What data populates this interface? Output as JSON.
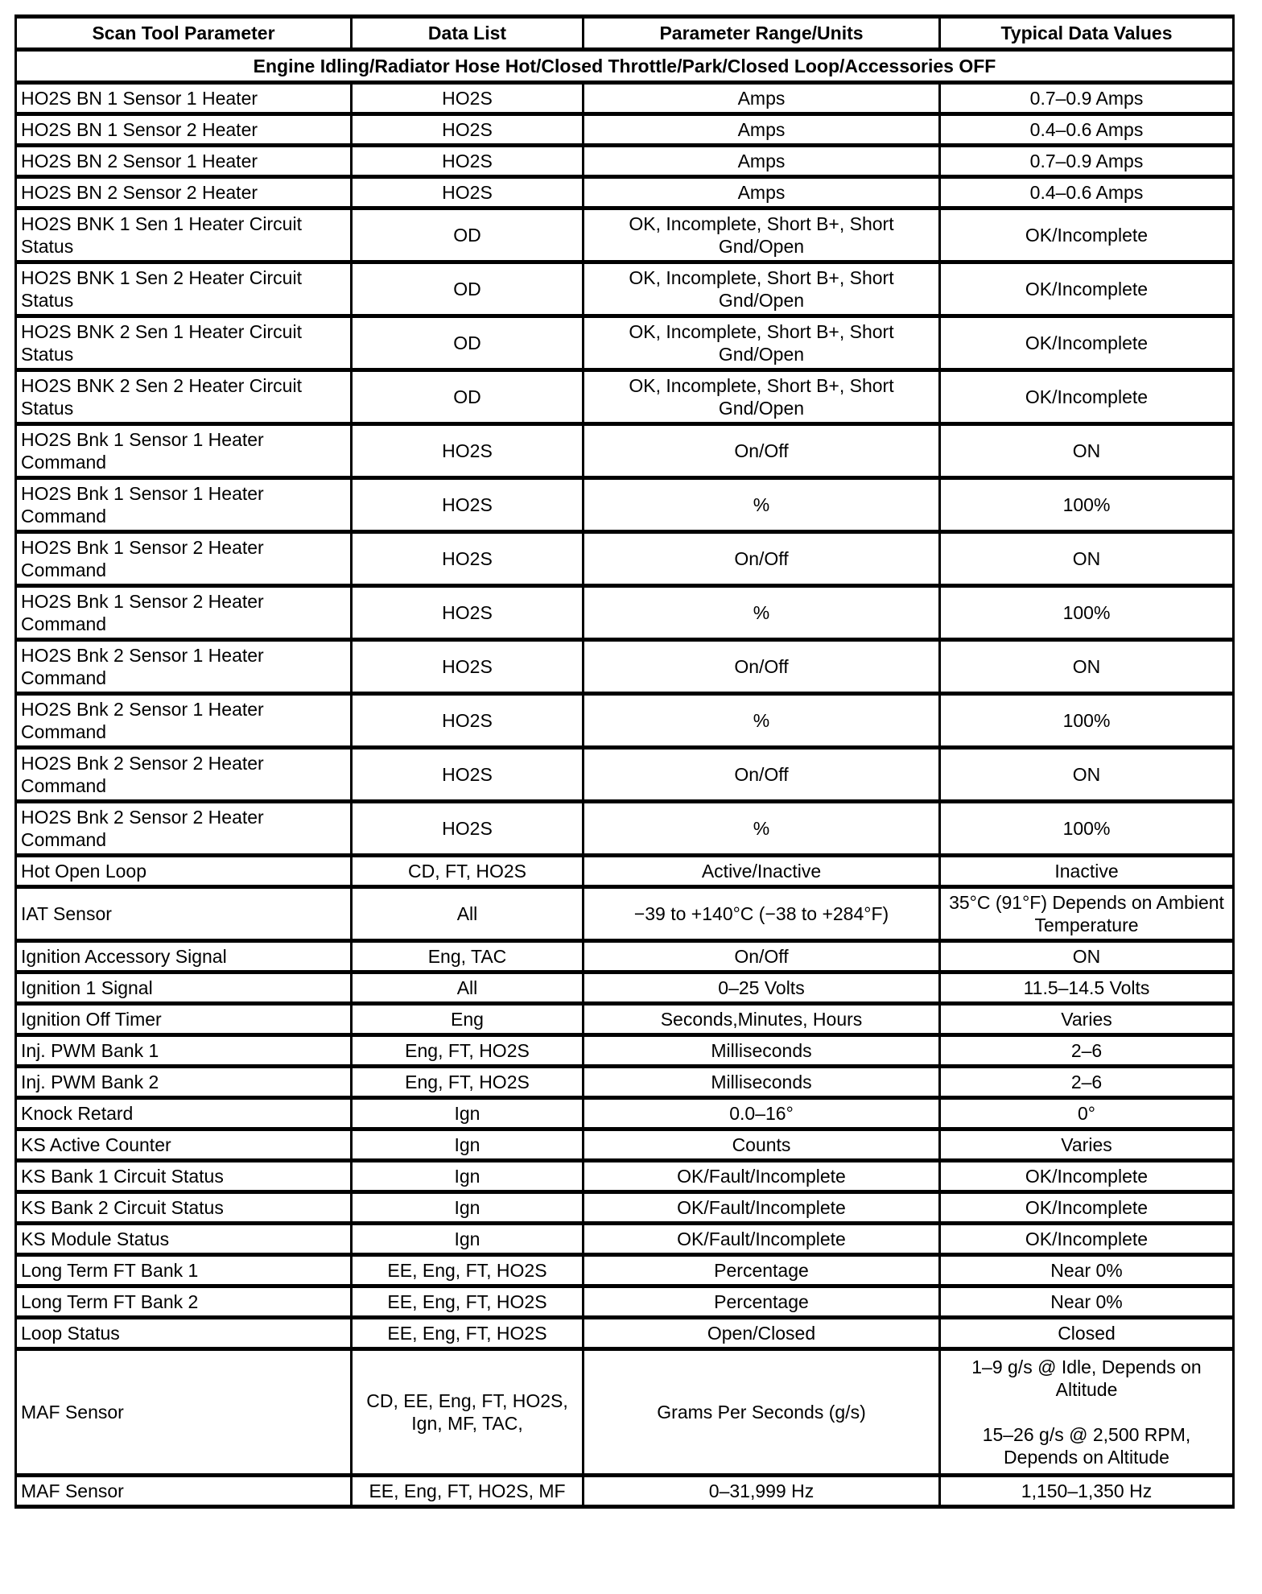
{
  "table": {
    "headers": [
      "Scan Tool Parameter",
      "Data List",
      "Parameter Range/Units",
      "Typical Data Values"
    ],
    "condition": "Engine Idling/Radiator Hose Hot/Closed Throttle/Park/Closed Loop/Accessories OFF",
    "rows": [
      [
        "HO2S BN 1 Sensor 1 Heater",
        "HO2S",
        "Amps",
        "0.7–0.9 Amps"
      ],
      [
        "HO2S BN 1 Sensor 2 Heater",
        "HO2S",
        "Amps",
        "0.4–0.6 Amps"
      ],
      [
        "HO2S BN 2 Sensor 1 Heater",
        "HO2S",
        "Amps",
        "0.7–0.9 Amps"
      ],
      [
        "HO2S BN 2 Sensor 2 Heater",
        "HO2S",
        "Amps",
        "0.4–0.6 Amps"
      ],
      [
        "HO2S BNK 1 Sen 1 Heater Circuit Status",
        "OD",
        "OK, Incomplete, Short B+, Short Gnd/Open",
        "OK/Incomplete"
      ],
      [
        "HO2S BNK 1 Sen 2 Heater Circuit Status",
        "OD",
        "OK, Incomplete, Short B+, Short Gnd/Open",
        "OK/Incomplete"
      ],
      [
        "HO2S BNK 2 Sen 1 Heater Circuit Status",
        "OD",
        "OK, Incomplete, Short B+, Short Gnd/Open",
        "OK/Incomplete"
      ],
      [
        "HO2S BNK 2 Sen 2 Heater Circuit Status",
        "OD",
        "OK, Incomplete, Short B+, Short Gnd/Open",
        "OK/Incomplete"
      ],
      [
        "HO2S Bnk 1 Sensor 1 Heater Command",
        "HO2S",
        "On/Off",
        "ON"
      ],
      [
        "HO2S Bnk 1 Sensor 1 Heater Command",
        "HO2S",
        "%",
        "100%"
      ],
      [
        "HO2S Bnk 1 Sensor 2 Heater Command",
        "HO2S",
        "On/Off",
        "ON"
      ],
      [
        "HO2S Bnk 1 Sensor 2 Heater Command",
        "HO2S",
        "%",
        "100%"
      ],
      [
        "HO2S Bnk 2 Sensor 1 Heater Command",
        "HO2S",
        "On/Off",
        "ON"
      ],
      [
        "HO2S Bnk 2 Sensor 1 Heater Command",
        "HO2S",
        "%",
        "100%"
      ],
      [
        "HO2S Bnk 2 Sensor 2 Heater Command",
        "HO2S",
        "On/Off",
        "ON"
      ],
      [
        "HO2S Bnk 2 Sensor 2 Heater Command",
        "HO2S",
        "%",
        "100%"
      ],
      [
        "Hot Open Loop",
        "CD, FT, HO2S",
        "Active/Inactive",
        "Inactive"
      ],
      [
        "IAT Sensor",
        "All",
        "−39 to +140°C (−38 to +284°F)",
        "35°C (91°F) Depends on Ambient Temperature"
      ],
      [
        "Ignition Accessory Signal",
        "Eng, TAC",
        "On/Off",
        "ON"
      ],
      [
        "Ignition 1 Signal",
        "All",
        "0–25 Volts",
        "11.5–14.5 Volts"
      ],
      [
        "Ignition Off Timer",
        "Eng",
        "Seconds,Minutes, Hours",
        "Varies"
      ],
      [
        "Inj. PWM Bank 1",
        "Eng, FT, HO2S",
        "Milliseconds",
        "2–6"
      ],
      [
        "Inj. PWM Bank 2",
        "Eng, FT, HO2S",
        "Milliseconds",
        "2–6"
      ],
      [
        "Knock Retard",
        "Ign",
        "0.0–16°",
        "0°"
      ],
      [
        "KS Active Counter",
        "Ign",
        "Counts",
        "Varies"
      ],
      [
        "KS Bank 1 Circuit Status",
        "Ign",
        "OK/Fault/Incomplete",
        "OK/Incomplete"
      ],
      [
        "KS Bank 2 Circuit Status",
        "Ign",
        "OK/Fault/Incomplete",
        "OK/Incomplete"
      ],
      [
        "KS Module Status",
        "Ign",
        "OK/Fault/Incomplete",
        "OK/Incomplete"
      ],
      [
        "Long Term FT Bank 1",
        "EE, Eng, FT, HO2S",
        "Percentage",
        "Near 0%"
      ],
      [
        "Long Term FT Bank 2",
        "EE, Eng, FT, HO2S",
        "Percentage",
        "Near 0%"
      ],
      [
        "Loop Status",
        "EE, Eng, FT, HO2S",
        "Open/Closed",
        "Closed"
      ],
      [
        "MAF Sensor",
        "CD, EE, Eng, FT, HO2S, Ign, MF, TAC,",
        "Grams Per Seconds (g/s)",
        [
          "1–9 g/s @ Idle, Depends on Altitude",
          "15–26 g/s @ 2,500 RPM, Depends on Altitude"
        ]
      ],
      [
        "MAF Sensor",
        "EE, Eng, FT, HO2S, MF",
        "0–31,999 Hz",
        "1,150–1,350 Hz"
      ]
    ]
  }
}
